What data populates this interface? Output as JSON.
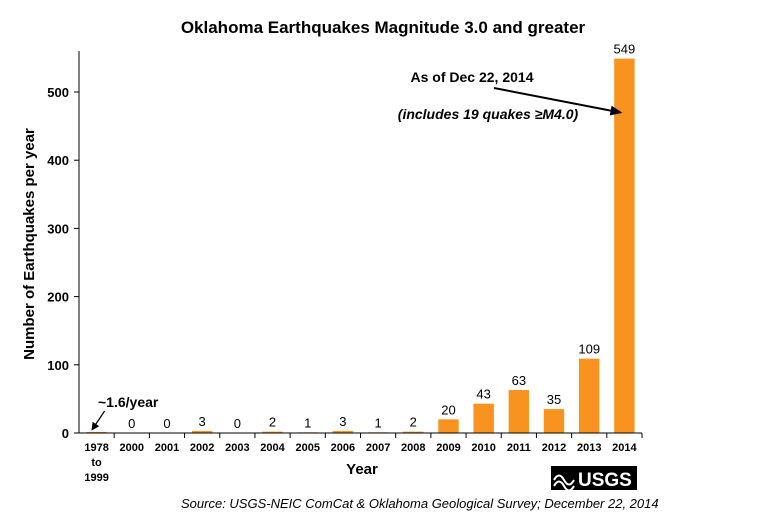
{
  "chart_data": {
    "type": "bar",
    "title": "Oklahoma Earthquakes Magnitude 3.0 and greater",
    "xlabel": "Year",
    "ylabel": "Number of Earthquakes per year",
    "ylim": [
      0,
      560
    ],
    "yticks": [
      0,
      100,
      200,
      300,
      400,
      500
    ],
    "grid": false,
    "categories": [
      "1978 to 1999",
      "2000",
      "2001",
      "2002",
      "2003",
      "2004",
      "2005",
      "2006",
      "2007",
      "2008",
      "2009",
      "2010",
      "2011",
      "2012",
      "2013",
      "2014"
    ],
    "category_lines": [
      [
        "1978",
        "to",
        "1999"
      ],
      [
        "2000"
      ],
      [
        "2001"
      ],
      [
        "2002"
      ],
      [
        "2003"
      ],
      [
        "2004"
      ],
      [
        "2005"
      ],
      [
        "2006"
      ],
      [
        "2007"
      ],
      [
        "2008"
      ],
      [
        "2009"
      ],
      [
        "2010"
      ],
      [
        "2011"
      ],
      [
        "2012"
      ],
      [
        "2013"
      ],
      [
        "2014"
      ]
    ],
    "values": [
      1.6,
      0,
      0,
      3,
      0,
      2,
      1,
      3,
      1,
      2,
      20,
      43,
      63,
      35,
      109,
      549
    ],
    "value_labels": [
      "",
      "0",
      "0",
      "3",
      "0",
      "2",
      "1",
      "3",
      "1",
      "2",
      "20",
      "43",
      "63",
      "35",
      "109",
      "549"
    ],
    "bar_color": "#F7931E",
    "annotations": [
      {
        "text": "~1.6/year",
        "target_category": "1978 to 1999"
      },
      {
        "text": "As of Dec 22, 2014",
        "target_category": "2014"
      },
      {
        "text": "(includes 19 quakes ≥M4.0)",
        "target_category": "2014"
      }
    ],
    "source": "Source: USGS-NEIC ComCat & Oklahoma Geological Survey;  December 22, 2014",
    "logo": {
      "text": "USGS",
      "icon": "usgs-wave-icon"
    }
  }
}
